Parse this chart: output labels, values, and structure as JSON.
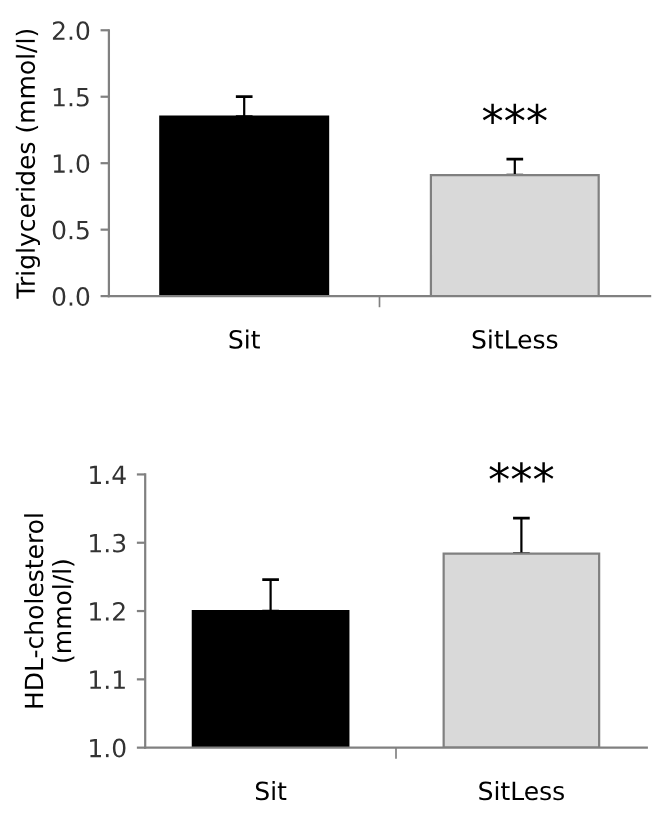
{
  "chart_data": [
    {
      "type": "bar",
      "ylabel": "Triglycerides (mmol/l)",
      "categories": [
        "Sit",
        "SitLess"
      ],
      "values": [
        1.35,
        0.91
      ],
      "colors": [
        "#000000",
        "#d9d9d9"
      ],
      "errors": [
        [
          1.35,
          1.5
        ],
        [
          0.91,
          1.03
        ]
      ],
      "ylim": [
        0,
        2.0
      ],
      "yticks": [
        {
          "value": 0,
          "label": "0.0"
        },
        {
          "value": 0.5,
          "label": "0.5"
        },
        {
          "value": 1.0,
          "label": "1.0"
        },
        {
          "value": 1.5,
          "label": "1.5"
        },
        {
          "value": 2.0,
          "label": "2.0"
        }
      ],
      "grid": false,
      "annotations": [
        "***"
      ]
    },
    {
      "type": "bar",
      "ylabel": "HDL-cholesterol\n(mmol/l)",
      "categories": [
        "Sit",
        "SitLess"
      ],
      "values": [
        1.2,
        1.284
      ],
      "colors": [
        "#000000",
        "#d9d9d9"
      ],
      "errors": [
        [
          1.2,
          1.246
        ],
        [
          1.284,
          1.336
        ]
      ],
      "ylim": [
        1.0,
        1.4
      ],
      "yticks": [
        {
          "value": 1.0,
          "label": "1.0"
        },
        {
          "value": 1.1,
          "label": "1.1"
        },
        {
          "value": 1.2,
          "label": "1.2"
        },
        {
          "value": 1.3,
          "label": "1.3"
        },
        {
          "value": 1.4,
          "label": "1.4"
        }
      ],
      "grid": false,
      "annotations": [
        "***"
      ]
    }
  ]
}
